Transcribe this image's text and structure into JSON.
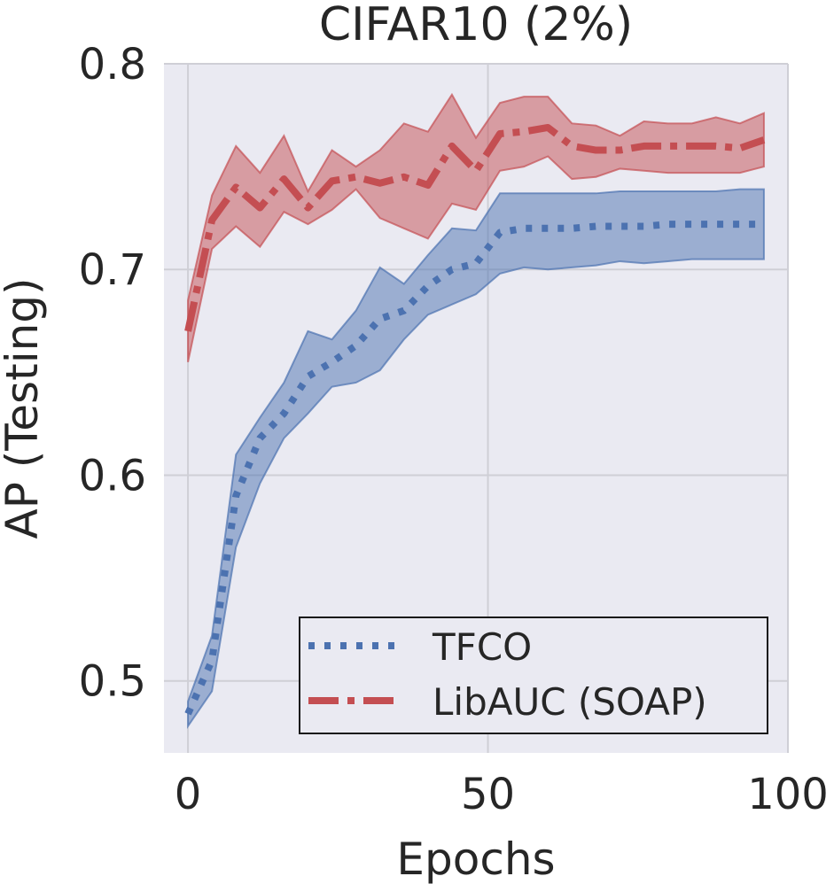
{
  "chart_data": {
    "type": "line",
    "title": "CIFAR10 (2%)",
    "xlabel": "Epochs",
    "ylabel": "AP (Testing)",
    "xlim": [
      -4,
      100
    ],
    "ylim": [
      0.465,
      0.8
    ],
    "xticks": [
      "0",
      "50",
      "100"
    ],
    "yticks": [
      "0.5",
      "0.6",
      "0.7",
      "0.8"
    ],
    "grid": true,
    "legend_position": "lower-right",
    "x": [
      0,
      4,
      8,
      12,
      16,
      20,
      24,
      28,
      32,
      36,
      40,
      44,
      48,
      52,
      56,
      60,
      64,
      68,
      72,
      76,
      80,
      84,
      88,
      92,
      96
    ],
    "series": [
      {
        "name": "TFCO",
        "color": "#4c72b0",
        "style": "dotted",
        "values": [
          0.484,
          0.51,
          0.59,
          0.618,
          0.63,
          0.648,
          0.655,
          0.663,
          0.676,
          0.68,
          0.692,
          0.7,
          0.703,
          0.718,
          0.72,
          0.72,
          0.72,
          0.721,
          0.721,
          0.721,
          0.722,
          0.722,
          0.722,
          0.722,
          0.722
        ],
        "lower": [
          0.478,
          0.495,
          0.565,
          0.596,
          0.618,
          0.63,
          0.643,
          0.645,
          0.651,
          0.666,
          0.678,
          0.683,
          0.688,
          0.698,
          0.701,
          0.7,
          0.701,
          0.702,
          0.704,
          0.703,
          0.704,
          0.705,
          0.705,
          0.705,
          0.705
        ],
        "upper": [
          0.49,
          0.522,
          0.61,
          0.628,
          0.645,
          0.67,
          0.666,
          0.68,
          0.701,
          0.693,
          0.707,
          0.72,
          0.719,
          0.737,
          0.737,
          0.737,
          0.737,
          0.737,
          0.738,
          0.738,
          0.738,
          0.738,
          0.738,
          0.739,
          0.739
        ]
      },
      {
        "name": "LibAUC (SOAP)",
        "color": "#c44e52",
        "style": "dashdot",
        "values": [
          0.67,
          0.724,
          0.74,
          0.73,
          0.744,
          0.73,
          0.743,
          0.745,
          0.742,
          0.745,
          0.741,
          0.76,
          0.748,
          0.766,
          0.767,
          0.769,
          0.76,
          0.758,
          0.758,
          0.76,
          0.76,
          0.76,
          0.76,
          0.759,
          0.763
        ],
        "lower": [
          0.655,
          0.71,
          0.721,
          0.711,
          0.728,
          0.722,
          0.729,
          0.739,
          0.725,
          0.72,
          0.715,
          0.732,
          0.729,
          0.748,
          0.75,
          0.755,
          0.744,
          0.745,
          0.749,
          0.748,
          0.747,
          0.747,
          0.747,
          0.747,
          0.75
        ],
        "upper": [
          0.685,
          0.736,
          0.76,
          0.747,
          0.765,
          0.738,
          0.758,
          0.75,
          0.758,
          0.771,
          0.767,
          0.785,
          0.764,
          0.781,
          0.784,
          0.784,
          0.771,
          0.77,
          0.765,
          0.772,
          0.771,
          0.771,
          0.774,
          0.771,
          0.776
        ]
      }
    ]
  }
}
